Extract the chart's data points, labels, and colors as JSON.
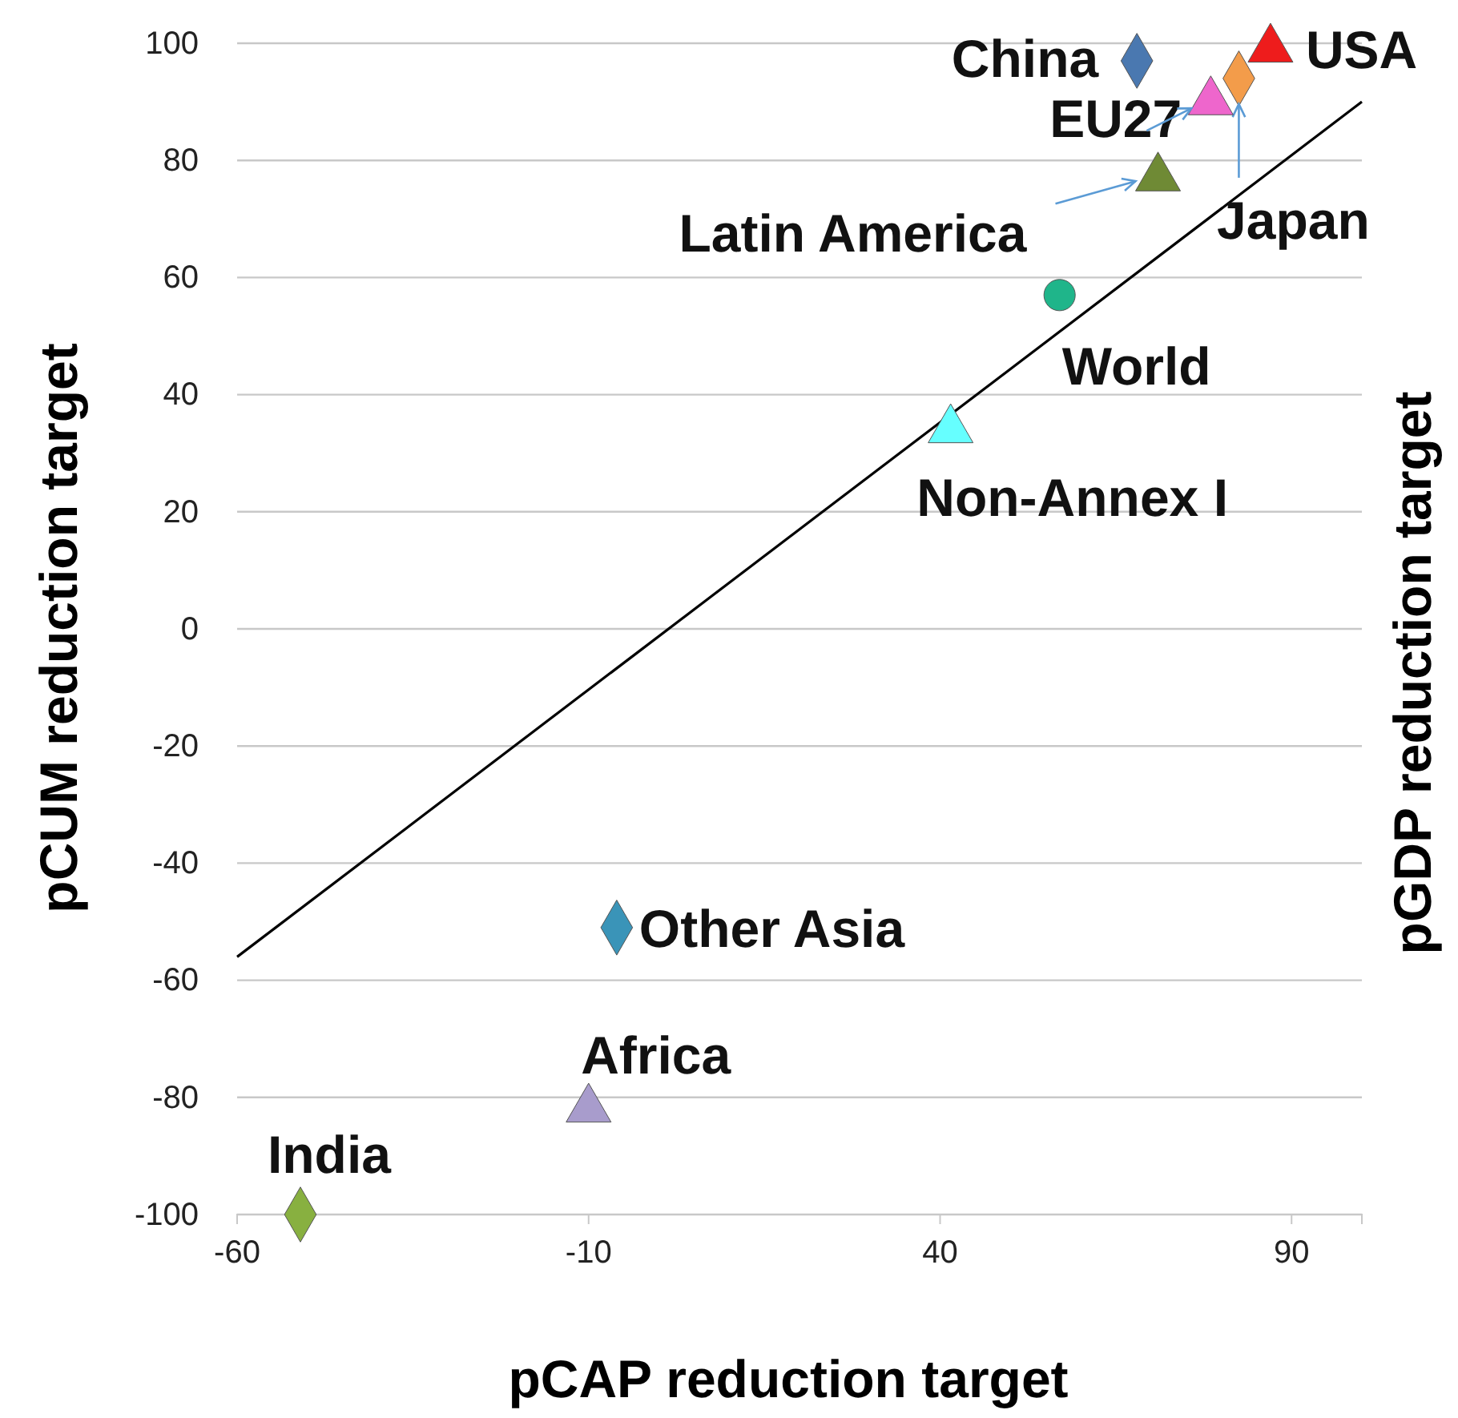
{
  "chart_data": {
    "type": "scatter",
    "xlabel": "pCAP reduction target",
    "ylabel": "pCUM reduction target",
    "y2label": "pGDP reduction target",
    "xlim": [
      -60,
      100
    ],
    "xticks": [
      -60,
      -10,
      40,
      90
    ],
    "ylim": [
      -100,
      100
    ],
    "yticks": [
      -100,
      -80,
      -60,
      -40,
      -20,
      0,
      20,
      40,
      60,
      80,
      100
    ],
    "grid": "y",
    "series": [
      {
        "name": "China",
        "color": "#4a78b0",
        "marker": "diamond",
        "x": [
          68
        ],
        "values": [
          97
        ]
      },
      {
        "name": "USA",
        "color": "#ee1c1c",
        "marker": "triangle",
        "x": [
          87
        ],
        "values": [
          99
        ]
      },
      {
        "name": "Japan",
        "color": "#f39c4a",
        "marker": "diamond",
        "x": [
          82.5
        ],
        "values": [
          94
        ]
      },
      {
        "name": "EU27",
        "color": "#ee66cc",
        "marker": "triangle",
        "x": [
          78.5
        ],
        "values": [
          90
        ]
      },
      {
        "name": "Latin America",
        "color": "#6f8a35",
        "marker": "triangle",
        "x": [
          71
        ],
        "values": [
          77
        ]
      },
      {
        "name": "World",
        "color": "#1fb58a",
        "marker": "circle",
        "x": [
          57
        ],
        "values": [
          57
        ]
      },
      {
        "name": "Non-Annex I",
        "color": "#66ffff",
        "marker": "triangle",
        "x": [
          41.5
        ],
        "values": [
          34
        ]
      },
      {
        "name": "Other Asia",
        "color": "#3a94b8",
        "marker": "diamond",
        "x": [
          -6
        ],
        "values": [
          -51
        ]
      },
      {
        "name": "Africa",
        "color": "#a89ccc",
        "marker": "triangle",
        "x": [
          -10
        ],
        "values": [
          -82
        ]
      },
      {
        "name": "India",
        "color": "#88b040",
        "marker": "diamond",
        "x": [
          -51
        ],
        "values": [
          -100
        ]
      },
      {
        "type": "line",
        "color": "#000000",
        "marker": "none",
        "x": [
          -60,
          100
        ],
        "values": [
          -56,
          90
        ]
      }
    ]
  }
}
